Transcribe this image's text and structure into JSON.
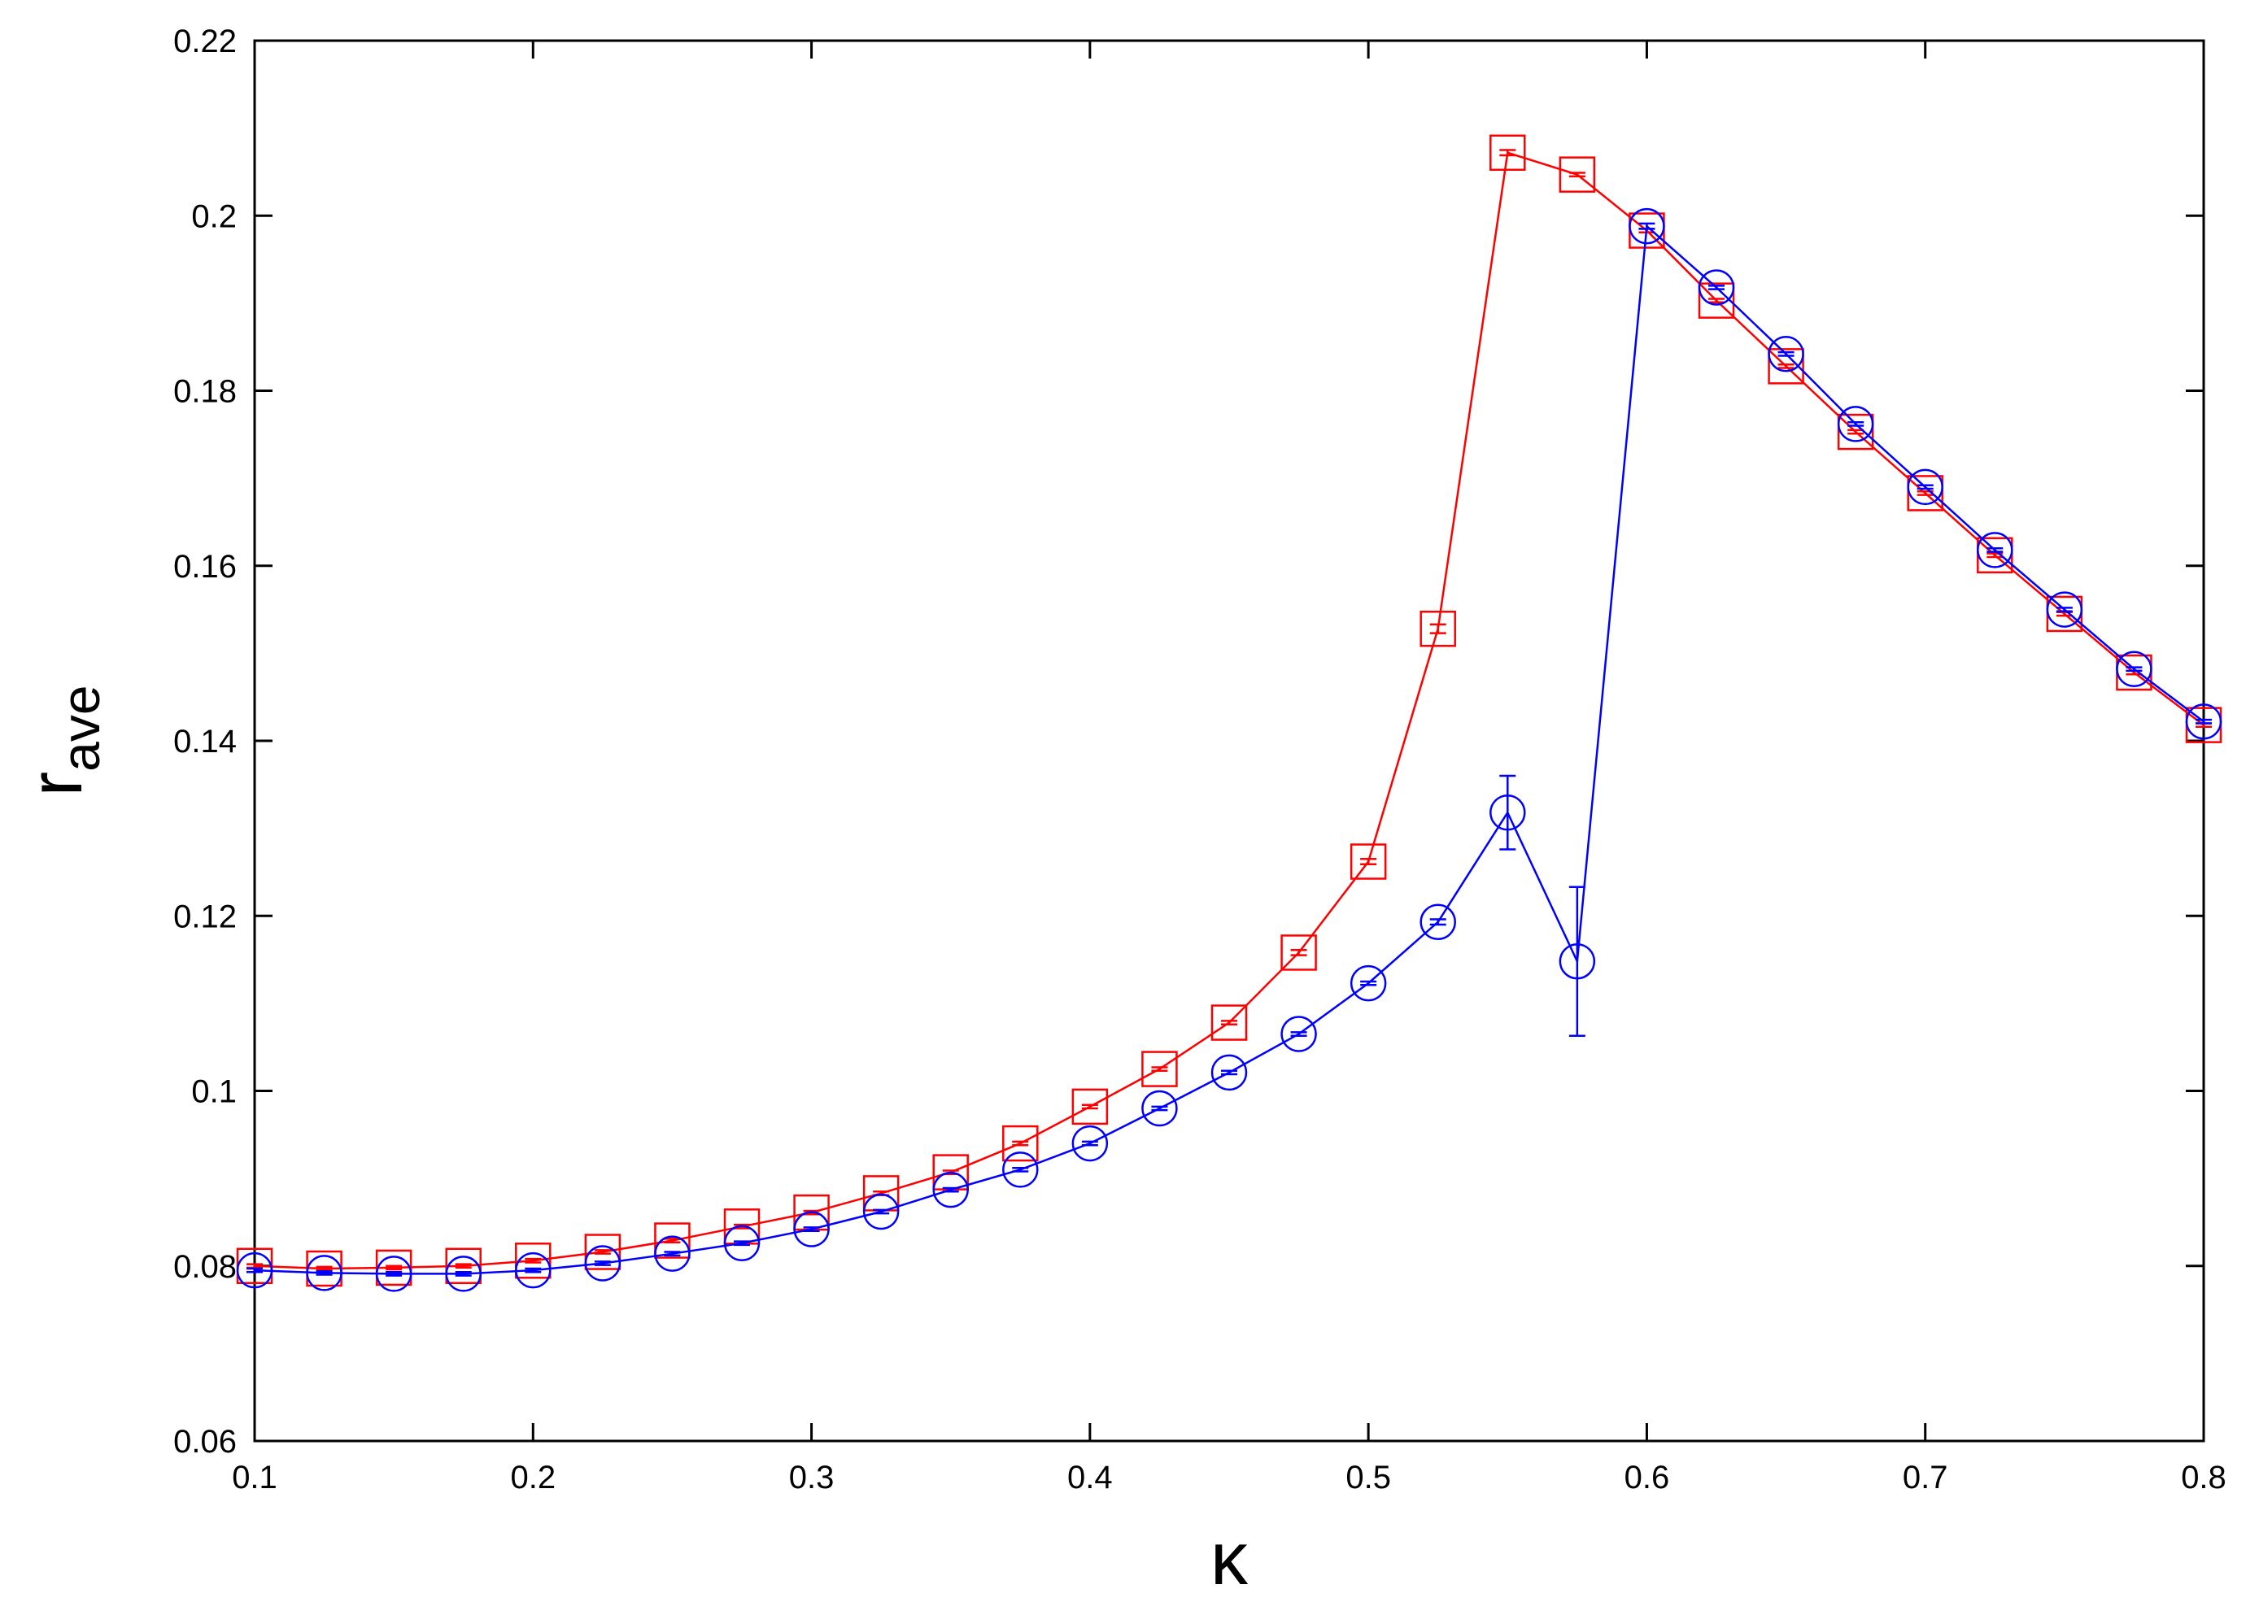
{
  "chart_data": {
    "type": "line",
    "xlabel": "κ",
    "ylabel": {
      "main": "r",
      "sub": "ave"
    },
    "xlim": [
      0.1,
      0.8
    ],
    "ylim": [
      0.06,
      0.22
    ],
    "x_ticks": [
      0.1,
      0.2,
      0.3,
      0.4,
      0.5,
      0.6,
      0.7,
      0.8
    ],
    "x_tick_labels": [
      "0.1",
      "0.2",
      "0.3",
      "0.4",
      "0.5",
      "0.6",
      "0.7",
      "0.8"
    ],
    "y_ticks": [
      0.06,
      0.08,
      0.1,
      0.12,
      0.14,
      0.16,
      0.18,
      0.2,
      0.22
    ],
    "y_tick_labels": [
      "0.06",
      "0.08",
      "0.1",
      "0.12",
      "0.14",
      "0.16",
      "0.18",
      "0.2",
      "0.22"
    ],
    "grid": false,
    "legend": "none",
    "series": [
      {
        "color": "#ff0000",
        "marker": "square",
        "x": [
          0.1,
          0.125,
          0.15,
          0.175,
          0.2,
          0.225,
          0.25,
          0.275,
          0.3,
          0.325,
          0.35,
          0.375,
          0.4,
          0.425,
          0.45,
          0.475,
          0.5,
          0.525,
          0.55,
          0.575,
          0.6,
          0.625,
          0.65,
          0.675,
          0.7,
          0.725,
          0.75,
          0.775,
          0.8
        ],
        "y": [
          0.08,
          0.0797,
          0.0798,
          0.08,
          0.0806,
          0.0816,
          0.0829,
          0.0845,
          0.0861,
          0.0883,
          0.0907,
          0.094,
          0.0982,
          0.1025,
          0.1078,
          0.1158,
          0.1262,
          0.1528,
          0.2072,
          0.2047,
          0.1983,
          0.1903,
          0.1828,
          0.1753,
          0.1683,
          0.1612,
          0.1545,
          0.1478,
          0.1418
        ],
        "err": [
          0.0002,
          0.0002,
          0.0002,
          0.0002,
          0.0002,
          0.0002,
          0.0002,
          0.0002,
          0.0002,
          0.0002,
          0.0002,
          0.0002,
          0.0002,
          0.0002,
          0.0002,
          0.0003,
          0.0003,
          0.0005,
          0.0003,
          0.0002,
          0.0002,
          0.0002,
          0.0002,
          0.0002,
          0.0002,
          0.0002,
          0.0002,
          0.0002,
          0.0002
        ]
      },
      {
        "color": "#0000ff",
        "marker": "circle",
        "x": [
          0.1,
          0.125,
          0.15,
          0.175,
          0.2,
          0.225,
          0.25,
          0.275,
          0.3,
          0.325,
          0.35,
          0.375,
          0.4,
          0.425,
          0.45,
          0.475,
          0.5,
          0.525,
          0.55,
          0.575,
          0.6,
          0.625,
          0.65,
          0.675,
          0.7,
          0.725,
          0.75,
          0.775,
          0.8
        ],
        "y": [
          0.0795,
          0.0792,
          0.0791,
          0.0791,
          0.0795,
          0.0803,
          0.0814,
          0.0826,
          0.0842,
          0.0862,
          0.0887,
          0.091,
          0.094,
          0.098,
          0.1021,
          0.1065,
          0.1123,
          0.1193,
          0.1318,
          0.1148,
          0.1988,
          0.1918,
          0.1842,
          0.1762,
          0.169,
          0.1618,
          0.155,
          0.1482,
          0.1422
        ],
        "err": [
          0.0002,
          0.0002,
          0.0002,
          0.0002,
          0.0002,
          0.0002,
          0.0002,
          0.0002,
          0.0002,
          0.0002,
          0.0002,
          0.0002,
          0.0002,
          0.0002,
          0.0002,
          0.0002,
          0.0002,
          0.0003,
          0.0042,
          0.0085,
          0.0003,
          0.0002,
          0.0002,
          0.0002,
          0.0002,
          0.0002,
          0.0002,
          0.0002,
          0.0002
        ]
      }
    ]
  }
}
